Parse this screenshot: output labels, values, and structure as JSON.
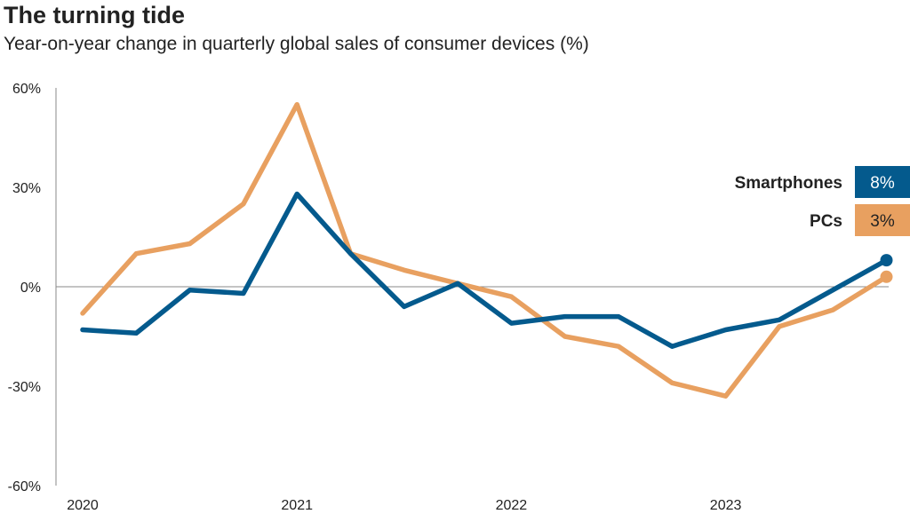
{
  "chart_data": {
    "type": "line",
    "title": "The turning tide",
    "subtitle": "Year-on-year change in quarterly global sales of consumer devices (%)",
    "xlabel": "",
    "ylabel": "",
    "x": [
      "2020 Q1",
      "2020 Q2",
      "2020 Q3",
      "2020 Q4",
      "2021 Q1",
      "2021 Q2",
      "2021 Q3",
      "2021 Q4",
      "2022 Q1",
      "2022 Q2",
      "2022 Q3",
      "2022 Q4",
      "2023 Q1",
      "2023 Q2",
      "2023 Q3",
      "2023 Q4"
    ],
    "x_tick_labels": [
      "2020",
      "2021",
      "2022",
      "2023"
    ],
    "ylim": [
      -60,
      60
    ],
    "y_ticks": [
      60,
      30,
      0,
      -30,
      -60
    ],
    "y_tick_labels": [
      "60%",
      "30%",
      "0%",
      "-30%",
      "-60%"
    ],
    "grid": false,
    "legend": "right",
    "series": [
      {
        "name": "Smartphones",
        "color": "#045a8d",
        "values": [
          -13,
          -14,
          -1,
          -2,
          28,
          10,
          -6,
          1,
          -11,
          -9,
          -9,
          -18,
          -13,
          -10,
          -1,
          8
        ],
        "end_label": "8%"
      },
      {
        "name": "PCs",
        "color": "#e8a060",
        "values": [
          -8,
          10,
          13,
          25,
          55,
          10,
          5,
          1,
          -3,
          -15,
          -18,
          -29,
          -33,
          -12,
          -7,
          3
        ],
        "end_label": "3%"
      }
    ]
  }
}
